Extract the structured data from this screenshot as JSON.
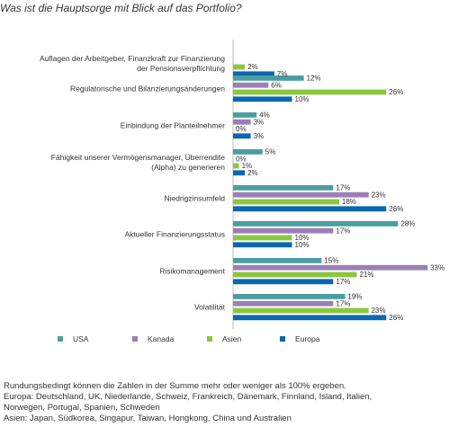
{
  "chart_data": {
    "type": "bar",
    "orientation": "horizontal",
    "title": "Was ist die Hauptsorge mit Blick auf das Portfolio?",
    "categories": [
      [
        "Auflagen der Arbeitgeber, Finanzkraft zur Finanzierung",
        "der Pensionsverpflichtung"
      ],
      [
        "Regulatorische und Bilanzierungsänderungen"
      ],
      [
        "Einbindung der Planteilnehmer"
      ],
      [
        "Fähigkeit unserer Vermögensmanager, Überrendite",
        "(Alpha) zu generieren"
      ],
      [
        "Niedrigzinsumfeld"
      ],
      [
        "Aktueller Finanzierungsstatus"
      ],
      [
        "Risikomanagement"
      ],
      [
        "Volatilität"
      ]
    ],
    "series": [
      {
        "name": "USA",
        "color": "#4a9ea1",
        "values": [
          0,
          12,
          4,
          5,
          17,
          28,
          15,
          19
        ]
      },
      {
        "name": "Kanada",
        "color": "#9b7fb6",
        "values": [
          0,
          6,
          3,
          0,
          23,
          17,
          33,
          17
        ]
      },
      {
        "name": "Asien",
        "color": "#8cc63f",
        "values": [
          2,
          26,
          0,
          1,
          18,
          10,
          21,
          23
        ]
      },
      {
        "name": "Europa",
        "color": "#0a67b0",
        "values": [
          7,
          10,
          3,
          2,
          26,
          10,
          17,
          26
        ]
      }
    ],
    "value_labels": [
      [
        null,
        "12%",
        "4%",
        "5%",
        "17%",
        "28%",
        "15%",
        "19%"
      ],
      [
        null,
        "6%",
        "3%",
        "0%",
        "23%",
        "17%",
        "33%",
        "17%"
      ],
      [
        "2%",
        "26%",
        "0%",
        "1%",
        "18%",
        "10%",
        "21%",
        "23%"
      ],
      [
        "7%",
        "10%",
        "3%",
        "2%",
        "26%",
        "10%",
        "17%",
        "26%"
      ]
    ],
    "xlim": [
      0,
      35
    ],
    "grid": false,
    "legend_position": "bottom"
  },
  "footnotes": [
    "Rundungsbedingt können die Zahlen in der Summe mehr oder weniger als 100% ergeben.",
    "Europa: Deutschland, UK, Niederlande, Schweiz, Frankreich, Dänemark, Finnland, Island, Italien,",
    "Norwegen, Portugal, Spanien, Schweden",
    "Asien: Japan, Südkorea, Singapur, Taiwan, Hongkong, China und Australien"
  ]
}
